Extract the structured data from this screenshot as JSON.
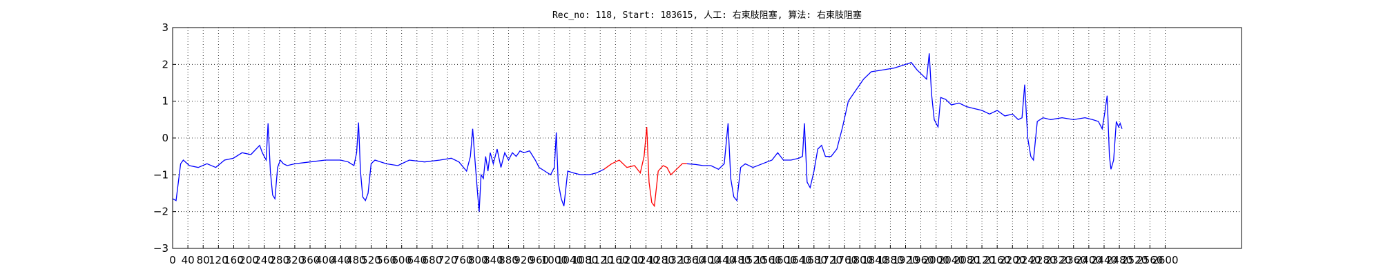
{
  "chart_data": {
    "type": "line",
    "title": "Rec_no: 118, Start: 183615, 人工: 右束肢阻塞, 算法: 右束肢阻塞",
    "xlim": [
      0,
      2800
    ],
    "xticks": [
      0,
      40,
      80,
      120,
      160,
      200,
      240,
      280,
      320,
      360,
      400,
      440,
      480,
      520,
      560,
      600,
      640,
      680,
      720,
      760,
      800,
      840,
      880,
      920,
      960,
      1000,
      1040,
      1080,
      1120,
      1160,
      1200,
      1240,
      1280,
      1320,
      1360,
      1400,
      1440,
      1480,
      1520,
      1560,
      1600,
      1640,
      1680,
      1720,
      1760,
      1800,
      1840,
      1880,
      1920,
      1960,
      2000,
      2040,
      2080,
      2120,
      2160,
      2200,
      2240,
      2280,
      2320,
      2360,
      2400,
      2440,
      2480,
      2520,
      2560,
      2600
    ],
    "ylim": [
      -3,
      3
    ],
    "yticks": [
      {
        "value": -3,
        "label": "−3"
      },
      {
        "value": -2,
        "label": "−2"
      },
      {
        "value": -1,
        "label": "−1"
      },
      0,
      1,
      2,
      3
    ],
    "grid": true,
    "series": [
      {
        "color": "#0000ff",
        "x": [
          0,
          9,
          21,
          28,
          44,
          67,
          90,
          113,
          136,
          159,
          182,
          205,
          228,
          235,
          245,
          250,
          256,
          262,
          268,
          275,
          282,
          290,
          300,
          320,
          360,
          400,
          440,
          460,
          475,
          482,
          487,
          492,
          498,
          505,
          512,
          520,
          530,
          560,
          590,
          620,
          660,
          700,
          730,
          750,
          770,
          780,
          786,
          792,
          798,
          803,
          808,
          814,
          820,
          826,
          832,
          840,
          850,
          860,
          870,
          880,
          890,
          900,
          910,
          920,
          935,
          950,
          960,
          975,
          990,
          1000,
          1005,
          1010,
          1018,
          1025,
          1035,
          1050,
          1070,
          1090,
          1110,
          1130,
          null,
          1347,
          1370,
          1390,
          1410,
          1430,
          1445,
          1455,
          1462,
          1470,
          1478,
          1488,
          1500,
          1520,
          1545,
          1570,
          1585,
          1600,
          1620,
          1640,
          1650,
          1655,
          1662,
          1670,
          1680,
          1690,
          1700,
          1710,
          1725,
          1740,
          1755,
          1770,
          1790,
          1810,
          1830,
          1860,
          1890,
          1920,
          1935,
          1950,
          1965,
          1975,
          1982,
          1988,
          1995,
          2005,
          2012,
          2025,
          2040,
          2060,
          2080,
          2100,
          2120,
          2140,
          2160,
          2180,
          2200,
          2215,
          2225,
          2232,
          2240,
          2248,
          2255,
          2265,
          2280,
          2300,
          2330,
          2360,
          2390,
          2410,
          2425,
          2435,
          2442,
          2448,
          2454,
          2458,
          2465,
          2472,
          2478,
          2482,
          2487
        ],
        "values": [
          -1.65,
          -1.7,
          -0.7,
          -0.6,
          -0.75,
          -0.8,
          -0.7,
          -0.8,
          -0.6,
          -0.55,
          -0.4,
          -0.45,
          -0.2,
          -0.4,
          -0.6,
          0.4,
          -0.9,
          -1.55,
          -1.65,
          -0.8,
          -0.6,
          -0.7,
          -0.75,
          -0.7,
          -0.65,
          -0.6,
          -0.6,
          -0.65,
          -0.75,
          -0.4,
          0.42,
          -0.9,
          -1.6,
          -1.7,
          -1.5,
          -0.7,
          -0.6,
          -0.7,
          -0.75,
          -0.6,
          -0.65,
          -0.6,
          -0.55,
          -0.65,
          -0.9,
          -0.5,
          0.25,
          -0.6,
          -1.4,
          -2.0,
          -1.0,
          -1.1,
          -0.5,
          -0.9,
          -0.4,
          -0.7,
          -0.3,
          -0.8,
          -0.4,
          -0.6,
          -0.4,
          -0.5,
          -0.35,
          -0.4,
          -0.35,
          -0.6,
          -0.8,
          -0.9,
          -1.0,
          -0.8,
          0.15,
          -1.2,
          -1.65,
          -1.85,
          -0.9,
          -0.95,
          -1.0,
          -1.0,
          -0.95,
          -0.85,
          null,
          -0.7,
          -0.72,
          -0.75,
          -0.75,
          -0.85,
          -0.7,
          0.4,
          -1.1,
          -1.6,
          -1.7,
          -0.8,
          -0.7,
          -0.8,
          -0.7,
          -0.6,
          -0.4,
          -0.6,
          -0.6,
          -0.55,
          -0.5,
          0.4,
          -1.2,
          -1.35,
          -0.9,
          -0.3,
          -0.2,
          -0.5,
          -0.5,
          -0.3,
          0.3,
          1.0,
          1.3,
          1.6,
          1.8,
          1.85,
          1.9,
          2.0,
          2.05,
          1.85,
          1.7,
          1.6,
          2.3,
          1.2,
          0.5,
          0.3,
          1.1,
          1.05,
          0.9,
          0.95,
          0.85,
          0.8,
          0.75,
          0.65,
          0.75,
          0.6,
          0.65,
          0.5,
          0.55,
          1.45,
          0.0,
          -0.5,
          -0.6,
          0.45,
          0.55,
          0.5,
          0.55,
          0.5,
          0.55,
          0.5,
          0.45,
          0.25,
          0.7,
          1.15,
          -0.5,
          -0.85,
          -0.6,
          0.45,
          0.3,
          0.4,
          0.25
        ]
      },
      {
        "color": "#ff0000",
        "x": [
          1130,
          1150,
          1170,
          1190,
          1210,
          1225,
          1235,
          1242,
          1248,
          1255,
          1262,
          1272,
          1285,
          1295,
          1305,
          1320,
          1335,
          1347
        ],
        "values": [
          -0.85,
          -0.7,
          -0.6,
          -0.8,
          -0.75,
          -0.95,
          -0.5,
          0.3,
          -1.2,
          -1.75,
          -1.85,
          -0.9,
          -0.75,
          -0.8,
          -1.0,
          -0.85,
          -0.7,
          -0.7
        ]
      }
    ]
  }
}
